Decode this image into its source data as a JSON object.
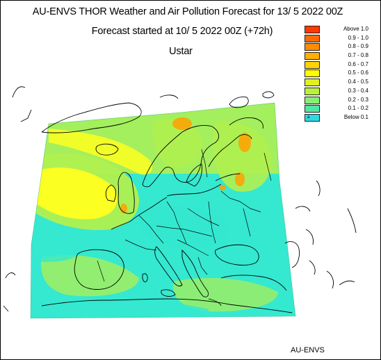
{
  "title": {
    "line1": "AU-ENVS THOR Weather and Air Pollution Forecast for 13/ 5 2022  00Z",
    "line2": "Forecast started at 10/ 5 2022  00Z (+72h)",
    "variable": "Ustar"
  },
  "legend": [
    {
      "label": "Above   1.0",
      "color": "#ff3a00"
    },
    {
      "label": "0.9 - 1.0",
      "color": "#ff6a00"
    },
    {
      "label": "0.8 - 0.9",
      "color": "#ff8c00"
    },
    {
      "label": "0.7 - 0.8",
      "color": "#ffb000"
    },
    {
      "label": "0.6 - 0.7",
      "color": "#ffd200"
    },
    {
      "label": "0.5 - 0.6",
      "color": "#ffff00"
    },
    {
      "label": "0.4 - 0.5",
      "color": "#e0f020"
    },
    {
      "label": "0.3 - 0.4",
      "color": "#b8f040"
    },
    {
      "label": "0.2 - 0.3",
      "color": "#88f070"
    },
    {
      "label": "0.1 - 0.2",
      "color": "#50e8a0"
    },
    {
      "label": "Below   0.1",
      "color": "#30d8e0",
      "mark": "a"
    }
  ],
  "credit": "AU-ENVS",
  "colors": {
    "field_low": "#35e8d0",
    "field_mid": "#b0f050",
    "field_high": "#ffff20",
    "field_peak": "#ffa000",
    "coastline": "#000000"
  }
}
